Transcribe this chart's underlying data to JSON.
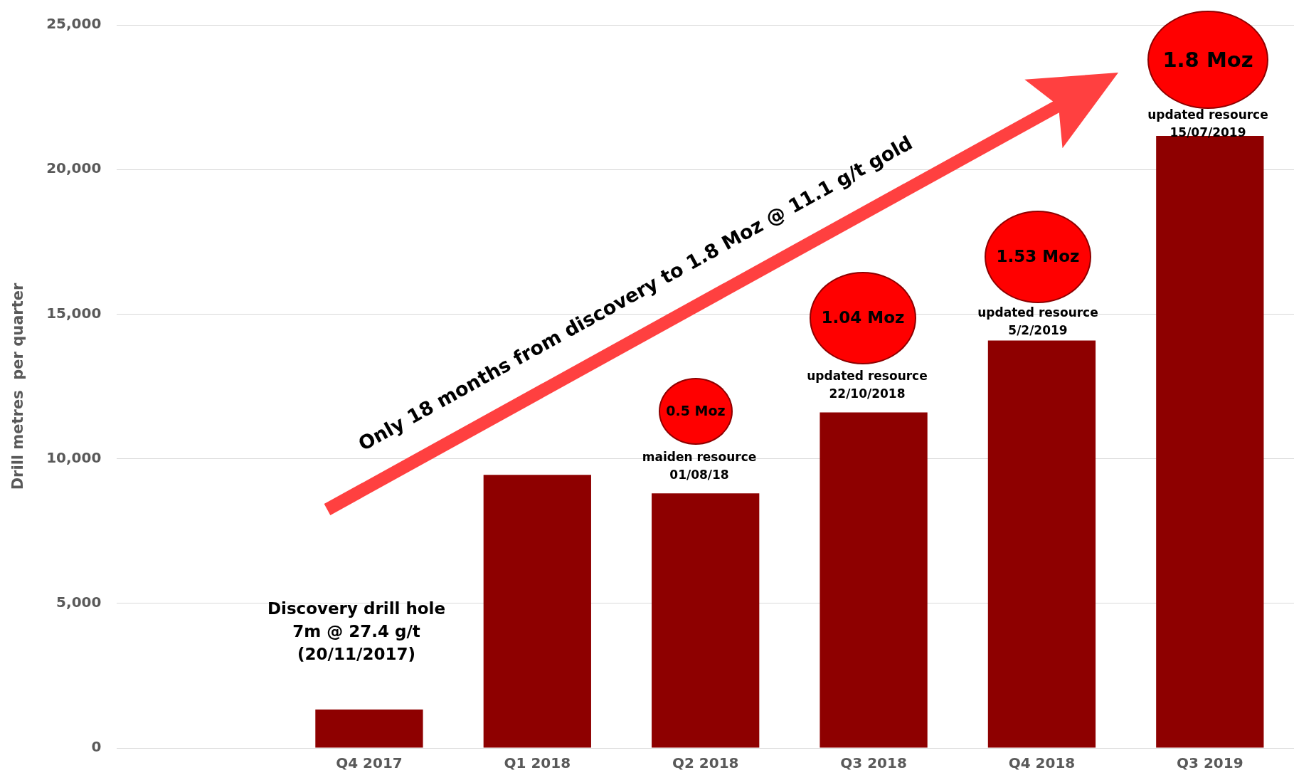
{
  "chart_data": {
    "type": "bar",
    "ylabel": "Drill metres  per quarter",
    "categories": [
      null,
      "Q4 2017",
      "Q1 2018",
      "Q2 2018",
      "Q3 2018",
      "Q4 2018",
      "Q3 2019"
    ],
    "values": [
      null,
      1330,
      9440,
      8800,
      11600,
      14090,
      21160
    ],
    "color": "#8e0000",
    "ylim": [
      0,
      25000
    ],
    "yticks": [
      {
        "value": 0,
        "label": "0"
      },
      {
        "value": 5000,
        "label": "5,000"
      },
      {
        "value": 10000,
        "label": "10,000"
      },
      {
        "value": 15000,
        "label": "15,000"
      },
      {
        "value": 20000,
        "label": "20,000"
      },
      {
        "value": 25000,
        "label": "25,000"
      }
    ],
    "grid": "y",
    "legend": false,
    "annotations": [
      "Discovery drill hole\n7m @ 27.4 g/t\n(20/11/2017)",
      "0.5 Moz",
      "maiden resource\n01/08/18",
      "1.04 Moz",
      "updated resource\n22/10/2018",
      "1.53 Moz",
      "updated resource\n5/2/2019",
      "1.8 Moz",
      "updated resource\n15/07/2019",
      "Only 18 months from discovery to 1.8 Moz @ 11.1 g/t gold"
    ]
  }
}
